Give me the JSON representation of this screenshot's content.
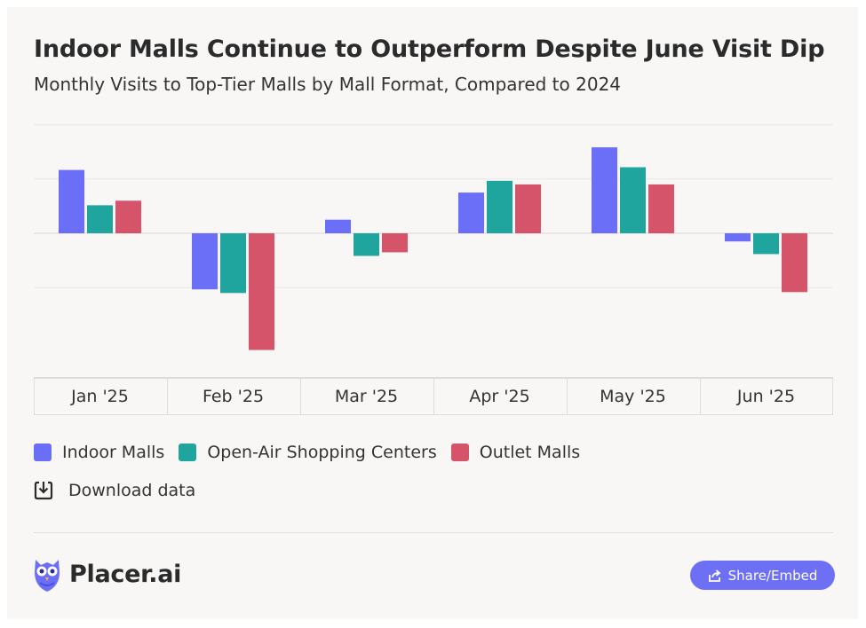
{
  "header": {
    "title": "Indoor Malls Continue to Outperform Despite June Visit Dip",
    "subtitle": "Monthly Visits to Top-Tier Malls by Mall Format, Compared to 2024"
  },
  "colors": {
    "indoor": "#6b6ef7",
    "open_air": "#1fa59d",
    "outlet": "#d5546a",
    "gridline": "#e9e8e6",
    "share_button": "#6d6ff5"
  },
  "chart_data": {
    "type": "bar",
    "categories": [
      "Jan '25",
      "Feb '25",
      "Mar '25",
      "Apr '25",
      "May '25",
      "Jun '25"
    ],
    "series": [
      {
        "name": "Indoor Malls",
        "values": [
          7.0,
          -6.2,
          1.5,
          4.5,
          9.5,
          -0.9
        ]
      },
      {
        "name": "Open-Air Shopping Centers",
        "values": [
          3.1,
          -6.6,
          -2.5,
          5.8,
          7.3,
          -2.3
        ]
      },
      {
        "name": "Outlet Malls",
        "values": [
          3.6,
          -12.9,
          -2.1,
          5.4,
          5.4,
          -6.5
        ]
      }
    ],
    "ylim": [
      -14,
      12
    ],
    "yticks": [
      -6,
      0,
      6,
      12
    ],
    "ytick_labels_shown": false,
    "grid": true,
    "legend_placement": "bottom-left"
  },
  "legend": {
    "items": [
      {
        "label": "Indoor Malls",
        "color": "#6b6ef7"
      },
      {
        "label": "Open-Air Shopping Centers",
        "color": "#1fa59d"
      },
      {
        "label": "Outlet Malls",
        "color": "#d5546a"
      }
    ]
  },
  "download": {
    "label": "Download data",
    "icon": "download-icon"
  },
  "footer": {
    "logo_text": "Placer.ai",
    "logo_icon": "owl-icon",
    "share_label": "Share/Embed",
    "share_icon": "share-icon"
  }
}
